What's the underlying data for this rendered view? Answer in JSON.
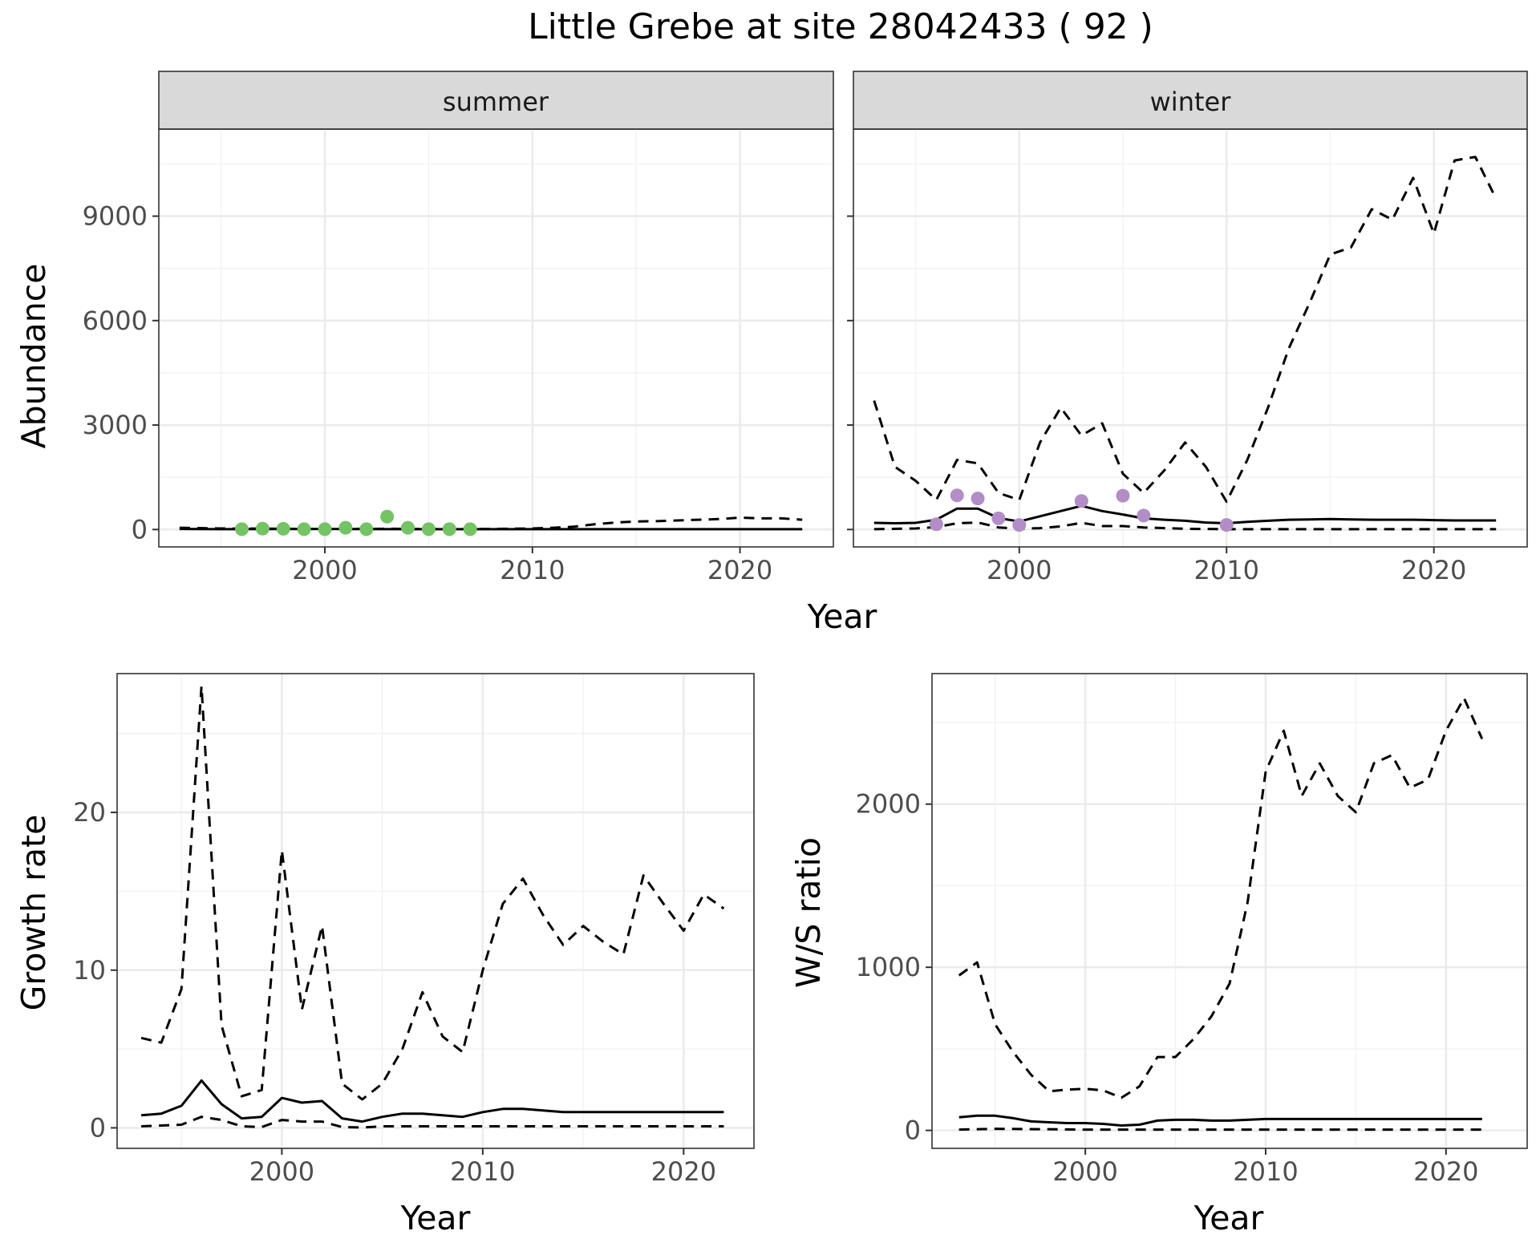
{
  "title": "Little Grebe at site 28042433 ( 92 )",
  "colors": {
    "summer_points": "#74c365",
    "winter_points": "#b28dc6",
    "lines": "#000000"
  },
  "chart_data": [
    {
      "id": "abundance-summer",
      "type": "line",
      "strip": "summer",
      "xlabel": "",
      "ylabel": "Abundance",
      "xlim": [
        1992,
        2024.5
      ],
      "ylim": [
        -500,
        11500
      ],
      "xticks": [
        2000,
        2010,
        2020
      ],
      "yticks": [
        0,
        3000,
        6000,
        9000
      ],
      "series": [
        {
          "style": "solid",
          "x": [
            1993,
            1995,
            2000,
            2005,
            2010,
            2015,
            2020,
            2023
          ],
          "y": [
            15,
            10,
            15,
            10,
            10,
            10,
            10,
            10
          ]
        },
        {
          "style": "dashed",
          "x": [
            1993,
            1995,
            1998,
            2000,
            2003,
            2006,
            2008,
            2010,
            2011,
            2012,
            2013,
            2014,
            2015,
            2016,
            2017,
            2018,
            2019,
            2020,
            2021,
            2022,
            2023
          ],
          "y": [
            50,
            30,
            20,
            15,
            20,
            10,
            15,
            30,
            50,
            80,
            150,
            200,
            230,
            240,
            260,
            280,
            300,
            340,
            320,
            320,
            280
          ]
        }
      ],
      "points": {
        "color": "#74c365",
        "x": [
          1996,
          1997,
          1998,
          1999,
          2000,
          2001,
          2002,
          2003,
          2004,
          2005,
          2006,
          2007
        ],
        "y": [
          10,
          25,
          20,
          10,
          10,
          50,
          10,
          370,
          50,
          10,
          10,
          10
        ]
      }
    },
    {
      "id": "abundance-winter",
      "type": "line",
      "strip": "winter",
      "xlabel": "",
      "ylabel": "",
      "xlim": [
        1992,
        2024.5
      ],
      "ylim": [
        -500,
        11500
      ],
      "xticks": [
        2000,
        2010,
        2020
      ],
      "yticks": [
        0,
        3000,
        6000,
        9000
      ],
      "series": [
        {
          "style": "solid",
          "x": [
            1993,
            1994,
            1995,
            1996,
            1997,
            1998,
            1999,
            2000,
            2001,
            2002,
            2003,
            2004,
            2005,
            2006,
            2007,
            2008,
            2009,
            2010,
            2011,
            2012,
            2013,
            2014,
            2015,
            2016,
            2017,
            2018,
            2019,
            2020,
            2021,
            2022,
            2023
          ],
          "y": [
            190,
            180,
            190,
            280,
            600,
            600,
            330,
            230,
            380,
            530,
            680,
            530,
            430,
            320,
            280,
            250,
            200,
            180,
            220,
            250,
            280,
            290,
            300,
            290,
            280,
            280,
            280,
            270,
            260,
            260,
            260
          ]
        },
        {
          "style": "dashed",
          "x": [
            1993,
            1994,
            1995,
            1996,
            1997,
            1998,
            1999,
            2000,
            2001,
            2002,
            2003,
            2004,
            2005,
            2006,
            2007,
            2008,
            2009,
            2010,
            2011,
            2012,
            2013,
            2014,
            2015,
            2016,
            2017,
            2018,
            2019,
            2020,
            2021,
            2022,
            2023
          ],
          "y": [
            3700,
            1800,
            1400,
            850,
            2000,
            1900,
            1050,
            850,
            2500,
            3500,
            2700,
            3050,
            1600,
            1050,
            1700,
            2500,
            1800,
            800,
            2000,
            3500,
            5200,
            6500,
            7900,
            8100,
            9200,
            8900,
            10100,
            8500,
            10600,
            10700,
            9500
          ]
        },
        {
          "style": "dashed",
          "x": [
            1993,
            1995,
            1996,
            1997,
            1998,
            1999,
            2000,
            2001,
            2002,
            2003,
            2004,
            2005,
            2006,
            2008,
            2010,
            2015,
            2020,
            2023
          ],
          "y": [
            10,
            30,
            70,
            180,
            200,
            60,
            20,
            40,
            90,
            190,
            100,
            100,
            60,
            20,
            10,
            10,
            10,
            10
          ]
        }
      ],
      "points": {
        "color": "#b28dc6",
        "x": [
          1996,
          1997,
          1998,
          1999,
          2000,
          2003,
          2005,
          2006,
          2010
        ],
        "y": [
          150,
          980,
          890,
          320,
          130,
          820,
          970,
          400,
          130
        ]
      }
    },
    {
      "id": "growth-rate",
      "type": "line",
      "xlabel": "Year",
      "ylabel": "Growth rate",
      "xlim": [
        1991.8,
        2023.5
      ],
      "ylim": [
        -1.3,
        28.8
      ],
      "xticks": [
        2000,
        2010,
        2020
      ],
      "yticks": [
        0,
        10,
        20
      ],
      "series": [
        {
          "style": "solid",
          "x": [
            1993,
            1994,
            1995,
            1996,
            1997,
            1998,
            1999,
            2000,
            2001,
            2002,
            2003,
            2004,
            2005,
            2006,
            2007,
            2008,
            2009,
            2010,
            2011,
            2012,
            2013,
            2014,
            2015,
            2016,
            2017,
            2018,
            2019,
            2020,
            2021,
            2022
          ],
          "y": [
            0.8,
            0.9,
            1.4,
            3.0,
            1.5,
            0.6,
            0.7,
            1.9,
            1.6,
            1.7,
            0.6,
            0.4,
            0.7,
            0.9,
            0.9,
            0.8,
            0.7,
            1.0,
            1.2,
            1.2,
            1.1,
            1.0,
            1.0,
            1.0,
            1.0,
            1.0,
            1.0,
            1.0,
            1.0,
            1.0
          ]
        },
        {
          "style": "dashed",
          "x": [
            1993,
            1994,
            1995,
            1996,
            1997,
            1998,
            1999,
            2000,
            2001,
            2002,
            2003,
            2004,
            2005,
            2006,
            2007,
            2008,
            2009,
            2010,
            2011,
            2012,
            2013,
            2014,
            2015,
            2016,
            2017,
            2018,
            2019,
            2020,
            2021,
            2022
          ],
          "y": [
            5.7,
            5.4,
            8.8,
            28.0,
            6.5,
            2.0,
            2.4,
            17.6,
            7.5,
            12.8,
            2.8,
            1.8,
            2.8,
            5.0,
            8.6,
            5.8,
            4.8,
            10.0,
            14.2,
            15.8,
            13.5,
            11.6,
            12.8,
            11.8,
            11.0,
            16.0,
            14.2,
            12.5,
            14.8,
            13.9
          ]
        },
        {
          "style": "dashed",
          "x": [
            1993,
            1995,
            1996,
            1997,
            1998,
            1999,
            2000,
            2001,
            2002,
            2003,
            2004,
            2005,
            2010,
            2015,
            2020,
            2022
          ],
          "y": [
            0.1,
            0.2,
            0.7,
            0.5,
            0.1,
            0.05,
            0.5,
            0.4,
            0.4,
            0.05,
            0.02,
            0.1,
            0.1,
            0.1,
            0.1,
            0.1
          ]
        }
      ]
    },
    {
      "id": "ws-ratio",
      "type": "line",
      "xlabel": "Year",
      "ylabel": "W/S ratio",
      "xlim": [
        1991.5,
        2024.5
      ],
      "ylim": [
        -110,
        2800
      ],
      "xticks": [
        2000,
        2010,
        2020
      ],
      "yticks": [
        0,
        1000,
        2000
      ],
      "series": [
        {
          "style": "solid",
          "x": [
            1993,
            1994,
            1995,
            1996,
            1997,
            1998,
            1999,
            2000,
            2001,
            2002,
            2003,
            2004,
            2005,
            2006,
            2007,
            2008,
            2009,
            2010,
            2011,
            2012,
            2013,
            2014,
            2015,
            2016,
            2017,
            2018,
            2019,
            2020,
            2021,
            2022
          ],
          "y": [
            80,
            90,
            90,
            75,
            55,
            50,
            45,
            45,
            40,
            30,
            35,
            60,
            65,
            65,
            60,
            60,
            65,
            70,
            70,
            70,
            70,
            70,
            70,
            70,
            70,
            70,
            70,
            70,
            70,
            70
          ]
        },
        {
          "style": "dashed",
          "x": [
            1993,
            1994,
            1995,
            1996,
            1997,
            1998,
            1999,
            2000,
            2001,
            2002,
            2003,
            2004,
            2005,
            2006,
            2007,
            2008,
            2009,
            2010,
            2011,
            2012,
            2013,
            2014,
            2015,
            2016,
            2017,
            2018,
            2019,
            2020,
            2021,
            2022
          ],
          "y": [
            950,
            1030,
            650,
            480,
            340,
            240,
            250,
            255,
            245,
            200,
            270,
            450,
            450,
            560,
            700,
            900,
            1400,
            2200,
            2450,
            2050,
            2250,
            2050,
            1950,
            2250,
            2300,
            2100,
            2150,
            2450,
            2650,
            2400
          ]
        },
        {
          "style": "dashed",
          "x": [
            1993,
            1995,
            2000,
            2005,
            2010,
            2015,
            2020,
            2022
          ],
          "y": [
            5,
            10,
            5,
            5,
            5,
            5,
            5,
            5
          ]
        }
      ]
    }
  ]
}
